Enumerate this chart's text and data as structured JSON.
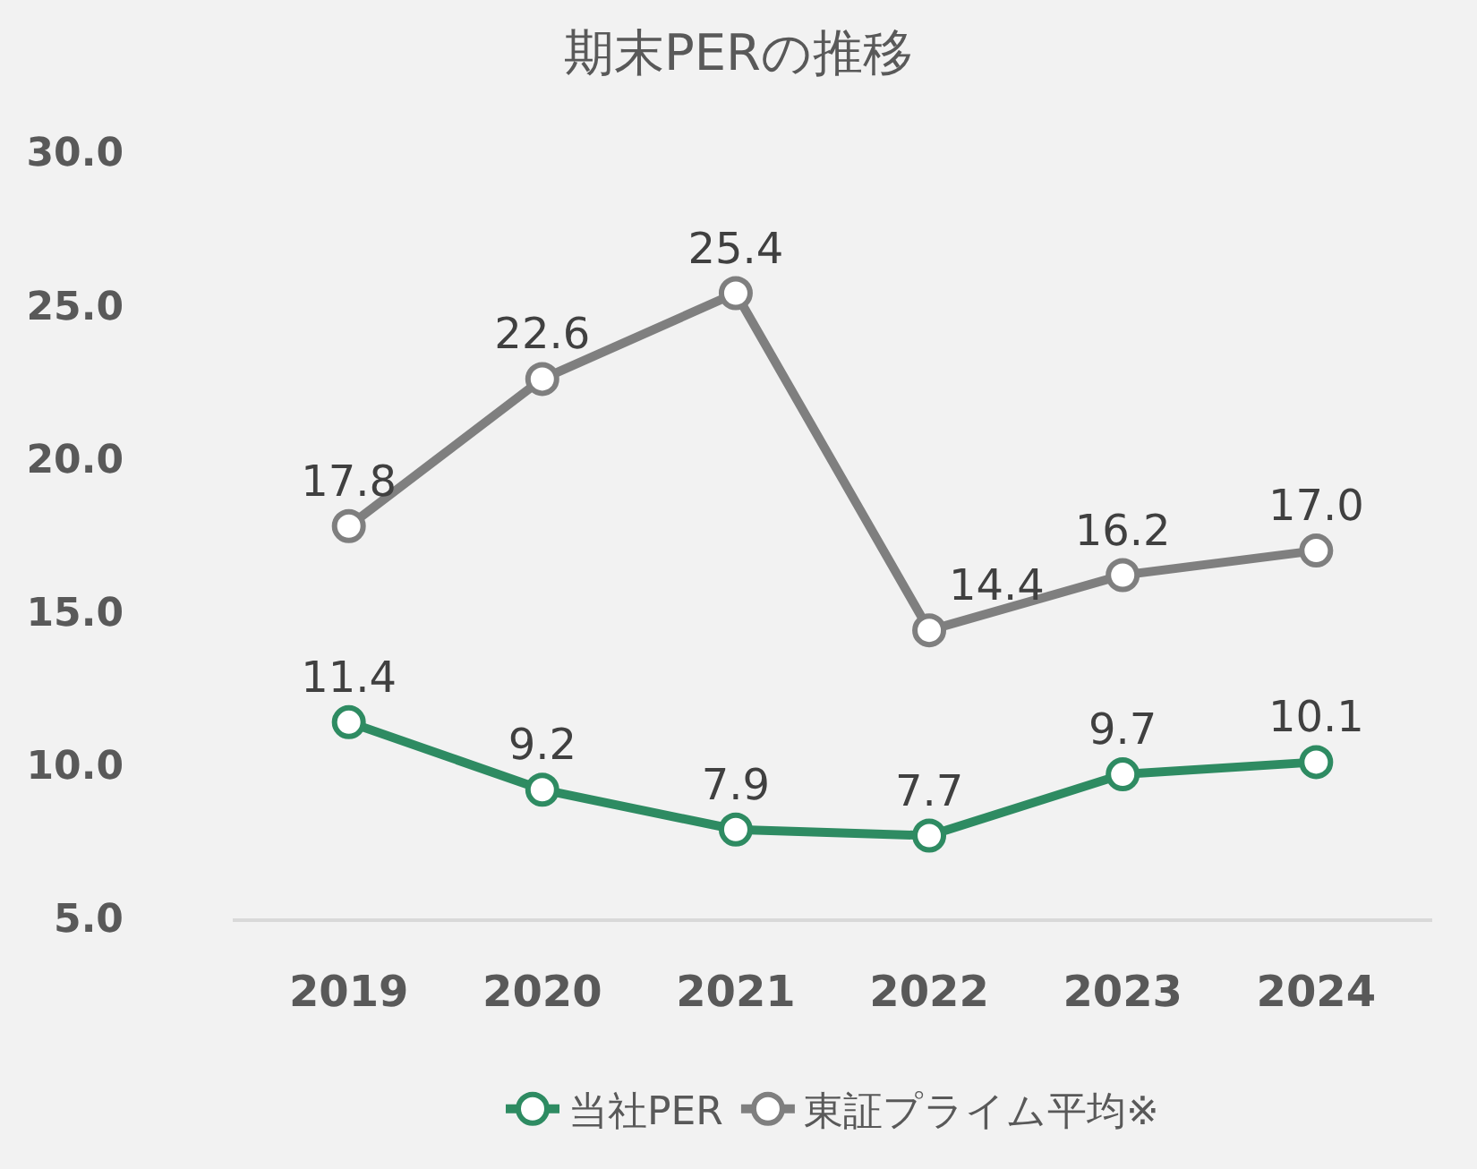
{
  "chart_data": {
    "type": "line",
    "title": "期末PERの推移",
    "categories": [
      "2019",
      "2020",
      "2021",
      "2022",
      "2023",
      "2024"
    ],
    "series": [
      {
        "name": "当社PER",
        "color": "#2e8b62",
        "values": [
          11.4,
          9.2,
          7.9,
          7.7,
          9.7,
          10.1
        ],
        "value_labels": [
          "11.4",
          "9.2",
          "7.9",
          "7.7",
          "9.7",
          "10.1"
        ]
      },
      {
        "name": "東証プライム平均※",
        "color": "#7f7f7f",
        "values": [
          17.8,
          22.6,
          25.4,
          14.4,
          16.2,
          17.0
        ],
        "value_labels": [
          "17.8",
          "22.6",
          "25.4",
          "14.4",
          "16.2",
          "17.0"
        ]
      }
    ],
    "ylim": [
      5,
      30
    ],
    "yticks": [
      {
        "value": 5,
        "label": "5.0"
      },
      {
        "value": 10,
        "label": "10.0"
      },
      {
        "value": 15,
        "label": "15.0"
      },
      {
        "value": 20,
        "label": "20.0"
      },
      {
        "value": 25,
        "label": "25.0"
      },
      {
        "value": 30,
        "label": "30.0"
      }
    ],
    "grid": false,
    "legend": "bottom",
    "marker": "circle",
    "line_style": "solid"
  }
}
